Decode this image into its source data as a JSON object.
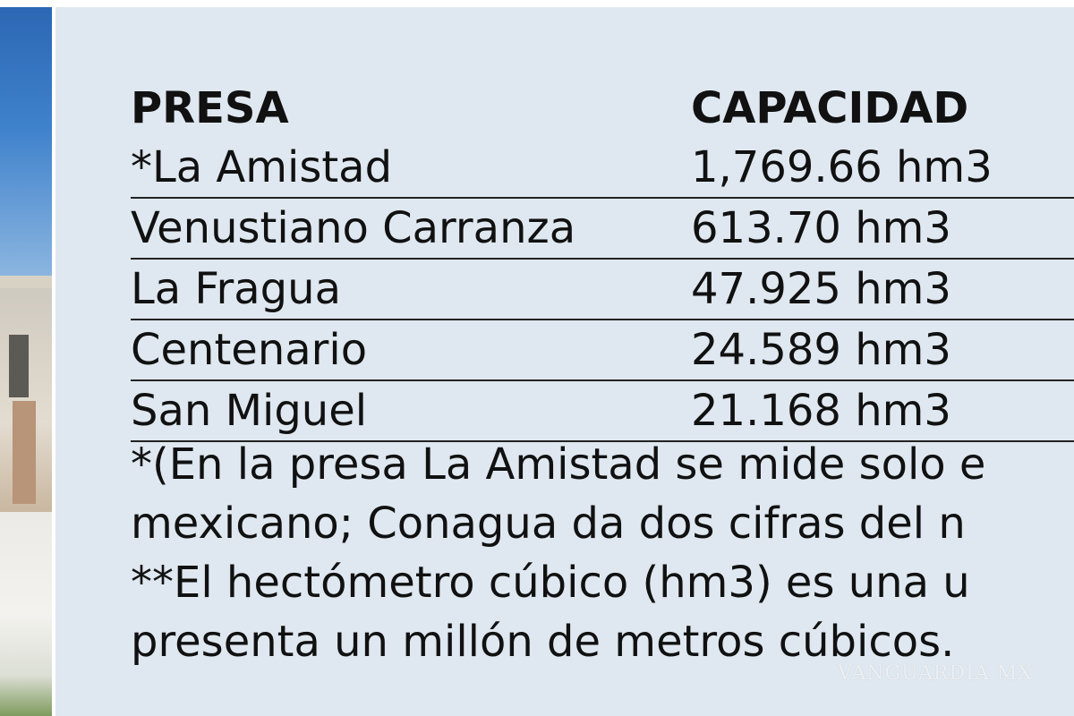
{
  "table": {
    "headers": [
      "PRESA",
      "CAPACIDAD"
    ],
    "rows": [
      [
        "*La Amistad",
        "1,769.66 hm3"
      ],
      [
        "Venustiano Carranza",
        "613.70 hm3"
      ],
      [
        "La Fragua",
        "47.925 hm3"
      ],
      [
        "Centenario",
        "24.589 hm3"
      ],
      [
        "San Miguel",
        "21.168 hm3"
      ]
    ]
  },
  "notes": [
    "*(En la presa La Amistad se mide solo e",
    "mexicano; Conagua da dos cifras del n",
    "**El hectómetro cúbico (hm3) es una u",
    "presenta un millón de metros cúbicos."
  ],
  "watermark": "VANGUARDIA MX",
  "colors": {
    "panel_bg": "#dfe8f0",
    "text": "#111111",
    "rule": "#222222"
  }
}
